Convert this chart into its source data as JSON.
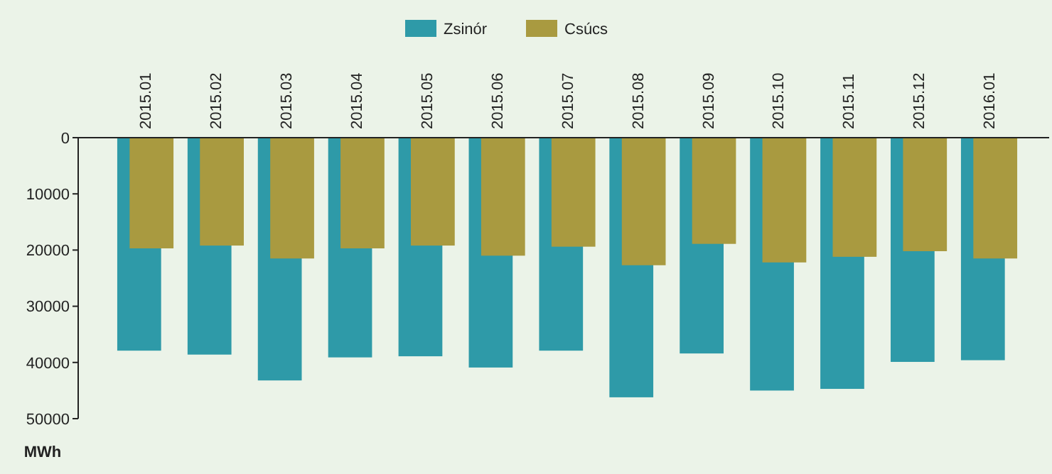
{
  "chart_data": {
    "type": "bar",
    "ylabel": "MWh",
    "categories": [
      "2015.01",
      "2015.02",
      "2015.03",
      "2015.04",
      "2015.05",
      "2015.06",
      "2015.07",
      "2015.08",
      "2015.09",
      "2015.10",
      "2015.11",
      "2015.12",
      "2016.01"
    ],
    "series": [
      {
        "name": "Zsinór",
        "color": "#2e9aa8",
        "values": [
          37900,
          38600,
          43200,
          39100,
          38900,
          40900,
          37900,
          46200,
          38400,
          45000,
          44700,
          39900,
          39600
        ]
      },
      {
        "name": "Csúcs",
        "color": "#a99a40",
        "values": [
          19700,
          19200,
          21500,
          19700,
          19200,
          21000,
          19400,
          22700,
          18900,
          22200,
          21200,
          20200,
          21500
        ]
      }
    ],
    "ylim": [
      50000,
      0
    ],
    "yticks": [
      0,
      10000,
      20000,
      30000,
      40000,
      50000
    ],
    "grid": false,
    "legend": "top"
  }
}
